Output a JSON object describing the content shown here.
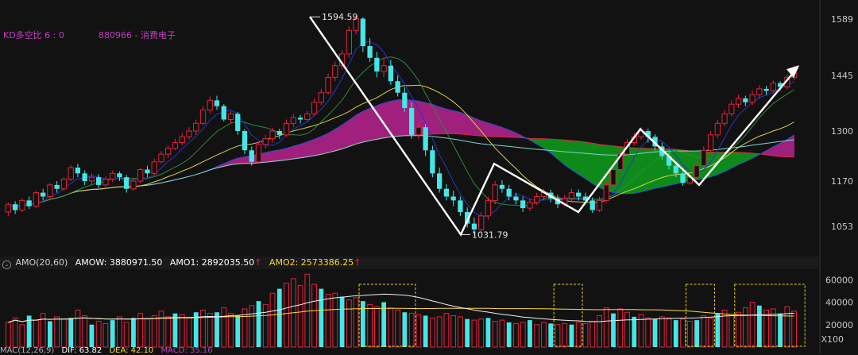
{
  "header": {
    "kd_label": "KD多空比  6 : 0",
    "symbol": "880966 - 消费电子"
  },
  "amo_header": {
    "title": "AMO(20,60)",
    "amow": "AMOW: 3880971.50",
    "amo1": "AMO1: 2892035.50",
    "amo2": "AMO2: 2573386.25",
    "arrow": "↑"
  },
  "macd_header": {
    "title": "MAC(12,26,9)",
    "dif": "DIF: 63.82",
    "dea": "DEA: 42.10",
    "macd": "MACD: 35.16"
  },
  "colors": {
    "bg": "#121212",
    "up": "#e8213a",
    "down": "#46e6e6",
    "ribbon_up": "#a0207d",
    "ribbon_down": "#0e8a1a",
    "zigzag": "#ffffff",
    "yellow": "#ffd83a",
    "magenta_text": "#c23fc2"
  },
  "chart_data": [
    {
      "type": "candlestick",
      "yticks": [
        1589,
        1445,
        1300,
        1170,
        1053
      ],
      "ylim": [
        1000,
        1620
      ],
      "annotations": [
        {
          "label": "1594.59",
          "value": 1594.59
        },
        {
          "label": "1031.79",
          "value": 1031.79
        }
      ],
      "zigzag_prices": [
        1594.59,
        1031.79,
        1215,
        1090,
        1305,
        1160,
        1465
      ],
      "candles": [
        [
          1090,
          1110,
          1080,
          1115
        ],
        [
          1110,
          1095,
          1085,
          1118
        ],
        [
          1095,
          1120,
          1090,
          1125
        ],
        [
          1120,
          1105,
          1098,
          1130
        ],
        [
          1105,
          1140,
          1100,
          1145
        ],
        [
          1140,
          1130,
          1120,
          1150
        ],
        [
          1130,
          1160,
          1125,
          1165
        ],
        [
          1160,
          1150,
          1140,
          1170
        ],
        [
          1150,
          1175,
          1145,
          1180
        ],
        [
          1175,
          1205,
          1170,
          1212
        ],
        [
          1205,
          1190,
          1180,
          1215
        ],
        [
          1190,
          1170,
          1160,
          1198
        ],
        [
          1170,
          1180,
          1160,
          1190
        ],
        [
          1180,
          1160,
          1152,
          1188
        ],
        [
          1160,
          1175,
          1150,
          1182
        ],
        [
          1175,
          1190,
          1168,
          1198
        ],
        [
          1190,
          1180,
          1170,
          1195
        ],
        [
          1180,
          1150,
          1140,
          1186
        ],
        [
          1150,
          1170,
          1145,
          1178
        ],
        [
          1170,
          1200,
          1165,
          1205
        ],
        [
          1200,
          1190,
          1180,
          1210
        ],
        [
          1190,
          1220,
          1185,
          1228
        ],
        [
          1220,
          1240,
          1215,
          1248
        ],
        [
          1240,
          1255,
          1230,
          1262
        ],
        [
          1255,
          1270,
          1250,
          1280
        ],
        [
          1270,
          1285,
          1262,
          1295
        ],
        [
          1285,
          1300,
          1278,
          1310
        ],
        [
          1300,
          1320,
          1290,
          1330
        ],
        [
          1320,
          1355,
          1315,
          1365
        ],
        [
          1355,
          1380,
          1345,
          1390
        ],
        [
          1380,
          1365,
          1355,
          1392
        ],
        [
          1365,
          1330,
          1325,
          1370
        ],
        [
          1330,
          1345,
          1320,
          1352
        ],
        [
          1345,
          1300,
          1290,
          1350
        ],
        [
          1300,
          1250,
          1240,
          1305
        ],
        [
          1250,
          1220,
          1210,
          1260
        ],
        [
          1220,
          1265,
          1215,
          1272
        ],
        [
          1265,
          1280,
          1255,
          1290
        ],
        [
          1280,
          1300,
          1270,
          1308
        ],
        [
          1300,
          1290,
          1280,
          1306
        ],
        [
          1290,
          1320,
          1285,
          1330
        ],
        [
          1320,
          1335,
          1310,
          1345
        ],
        [
          1335,
          1330,
          1320,
          1342
        ],
        [
          1330,
          1345,
          1325,
          1352
        ],
        [
          1345,
          1375,
          1340,
          1385
        ],
        [
          1375,
          1400,
          1368,
          1410
        ],
        [
          1400,
          1440,
          1395,
          1450
        ],
        [
          1440,
          1470,
          1430,
          1480
        ],
        [
          1470,
          1500,
          1460,
          1510
        ],
        [
          1500,
          1560,
          1490,
          1570
        ],
        [
          1560,
          1590,
          1550,
          1598
        ],
        [
          1590,
          1520,
          1505,
          1594
        ],
        [
          1520,
          1490,
          1480,
          1540
        ],
        [
          1490,
          1455,
          1440,
          1505
        ],
        [
          1455,
          1470,
          1440,
          1490
        ],
        [
          1470,
          1430,
          1420,
          1485
        ],
        [
          1430,
          1400,
          1390,
          1445
        ],
        [
          1400,
          1360,
          1350,
          1415
        ],
        [
          1360,
          1290,
          1280,
          1375
        ],
        [
          1290,
          1310,
          1280,
          1320
        ],
        [
          1310,
          1250,
          1235,
          1318
        ],
        [
          1250,
          1190,
          1180,
          1262
        ],
        [
          1190,
          1150,
          1140,
          1205
        ],
        [
          1150,
          1130,
          1120,
          1162
        ],
        [
          1130,
          1120,
          1105,
          1145
        ],
        [
          1120,
          1090,
          1080,
          1130
        ],
        [
          1090,
          1060,
          1050,
          1102
        ],
        [
          1060,
          1045,
          1032,
          1075
        ],
        [
          1045,
          1080,
          1040,
          1090
        ],
        [
          1080,
          1120,
          1070,
          1130
        ],
        [
          1120,
          1160,
          1110,
          1170
        ],
        [
          1160,
          1150,
          1140,
          1172
        ],
        [
          1150,
          1130,
          1120,
          1160
        ],
        [
          1130,
          1120,
          1110,
          1140
        ],
        [
          1120,
          1100,
          1090,
          1130
        ],
        [
          1100,
          1115,
          1092,
          1125
        ],
        [
          1115,
          1130,
          1108,
          1140
        ],
        [
          1130,
          1140,
          1120,
          1150
        ],
        [
          1140,
          1125,
          1115,
          1148
        ],
        [
          1125,
          1110,
          1100,
          1135
        ],
        [
          1110,
          1125,
          1104,
          1135
        ],
        [
          1125,
          1140,
          1118,
          1150
        ],
        [
          1140,
          1130,
          1120,
          1148
        ],
        [
          1130,
          1120,
          1110,
          1140
        ],
        [
          1120,
          1095,
          1088,
          1128
        ],
        [
          1095,
          1120,
          1090,
          1130
        ],
        [
          1120,
          1160,
          1115,
          1170
        ],
        [
          1160,
          1200,
          1155,
          1210
        ],
        [
          1200,
          1240,
          1192,
          1250
        ],
        [
          1240,
          1270,
          1230,
          1280
        ],
        [
          1270,
          1285,
          1262,
          1295
        ],
        [
          1285,
          1300,
          1278,
          1310
        ],
        [
          1300,
          1285,
          1270,
          1306
        ],
        [
          1285,
          1260,
          1250,
          1292
        ],
        [
          1260,
          1235,
          1225,
          1270
        ],
        [
          1235,
          1210,
          1200,
          1245
        ],
        [
          1210,
          1190,
          1180,
          1220
        ],
        [
          1190,
          1165,
          1158,
          1200
        ],
        [
          1165,
          1180,
          1160,
          1190
        ],
        [
          1180,
          1210,
          1175,
          1220
        ],
        [
          1210,
          1250,
          1205,
          1260
        ],
        [
          1250,
          1290,
          1245,
          1300
        ],
        [
          1290,
          1320,
          1282,
          1330
        ],
        [
          1320,
          1345,
          1312,
          1355
        ],
        [
          1345,
          1370,
          1338,
          1380
        ],
        [
          1370,
          1385,
          1360,
          1395
        ],
        [
          1385,
          1375,
          1365,
          1392
        ],
        [
          1375,
          1395,
          1368,
          1405
        ],
        [
          1395,
          1410,
          1385,
          1420
        ],
        [
          1410,
          1405,
          1395,
          1418
        ],
        [
          1405,
          1425,
          1398,
          1432
        ],
        [
          1425,
          1415,
          1405,
          1430
        ],
        [
          1415,
          1440,
          1408,
          1448
        ],
        [
          1440,
          1462,
          1432,
          1470
        ]
      ]
    },
    {
      "type": "bar",
      "title": "AMO(20,60)",
      "yticks": [
        60000,
        40000,
        20000
      ],
      "ylim": [
        0,
        68000
      ],
      "unit": "X100",
      "values": [
        22000,
        26000,
        20000,
        28000,
        24000,
        30000,
        23000,
        27000,
        25000,
        26000,
        33000,
        28000,
        20000,
        23000,
        21000,
        24000,
        27000,
        22000,
        26000,
        30000,
        25000,
        28000,
        32000,
        27000,
        30000,
        29000,
        26000,
        31000,
        33000,
        30000,
        31000,
        35000,
        30000,
        28000,
        34000,
        37000,
        41000,
        38000,
        48000,
        52000,
        57000,
        61000,
        55000,
        65000,
        56000,
        52000,
        47000,
        48000,
        45000,
        42000,
        44000,
        41000,
        38000,
        36000,
        40000,
        35000,
        33000,
        31000,
        30000,
        29000,
        28000,
        26000,
        27000,
        30000,
        28000,
        27000,
        25000,
        24000,
        25000,
        26000,
        23000,
        24000,
        22000,
        21000,
        22000,
        24000,
        20000,
        22000,
        21000,
        20000,
        21000,
        20000,
        22000,
        21000,
        23000,
        28000,
        35000,
        30000,
        34000,
        31000,
        27000,
        29000,
        26000,
        25000,
        27000,
        26000,
        24000,
        25000,
        23000,
        24000,
        28000,
        26000,
        30000,
        33000,
        29000,
        31000,
        35000,
        40000,
        37000,
        33000,
        34000,
        30000,
        36000,
        32000
      ],
      "boxes": [
        [
          51,
          58
        ],
        [
          79,
          82
        ],
        [
          98,
          101
        ],
        [
          105,
          114
        ]
      ],
      "amow": 3880971.5,
      "amo1": 2892035.5,
      "amo2": 2573386.25
    }
  ]
}
